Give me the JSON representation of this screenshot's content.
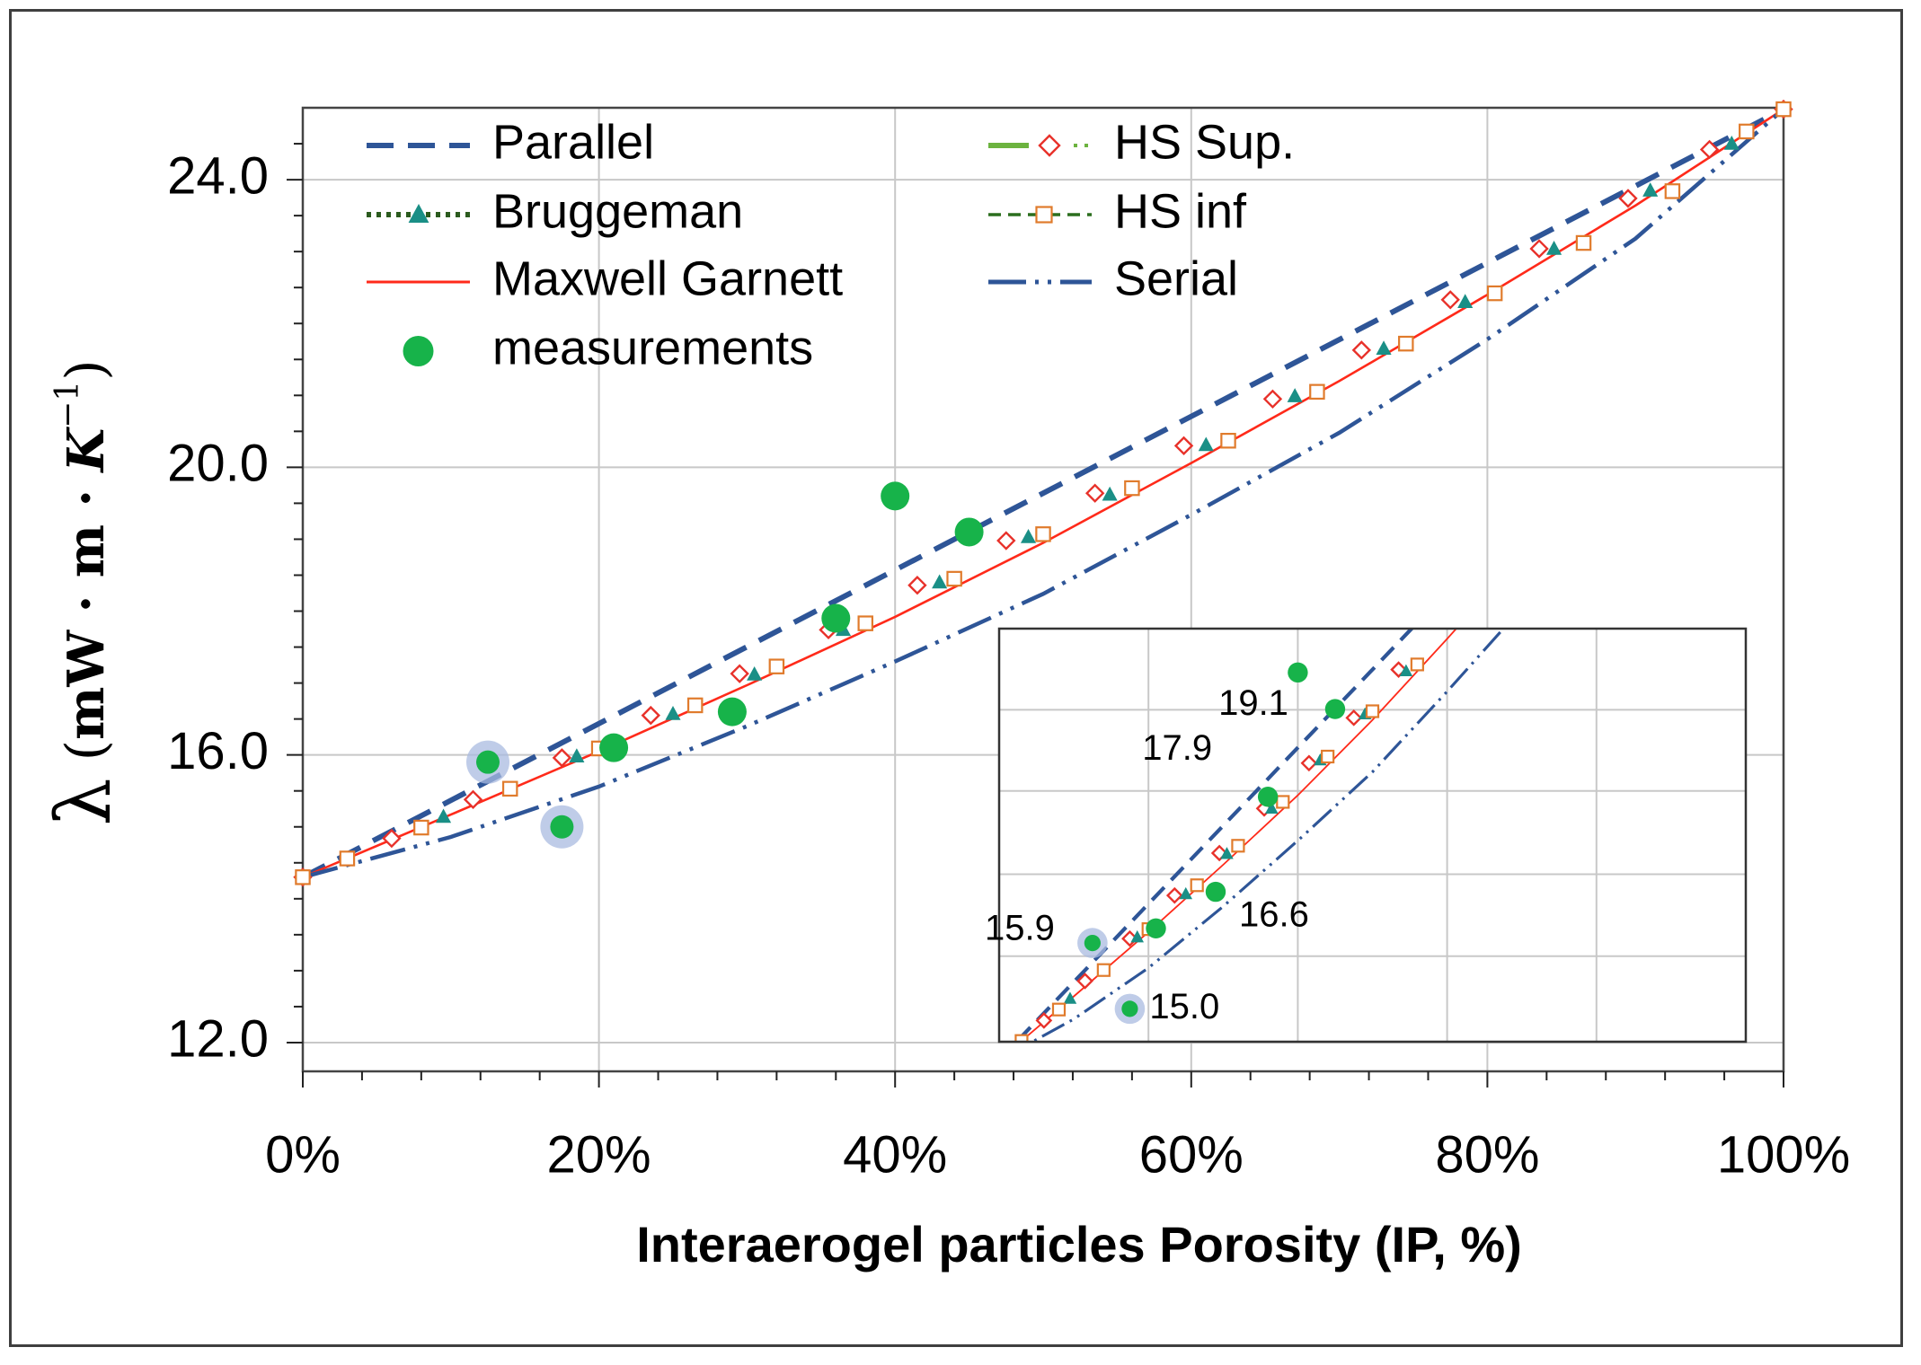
{
  "chart_data": {
    "type": "line",
    "xlabel": "Interaerogel particles Porosity (IP, %)",
    "ylabel_parts": {
      "symbol": "λ",
      "open": "(",
      "unit": "mW · m · ",
      "kelvin": "K",
      "exp": "−1",
      "close": ")"
    },
    "xlim": [
      0,
      1
    ],
    "ylim": [
      11.6,
      25.0
    ],
    "x_ticks": [
      0,
      0.2,
      0.4,
      0.6,
      0.8,
      1.0
    ],
    "x_tick_labels": [
      "0%",
      "20%",
      "40%",
      "60%",
      "80%",
      "100%"
    ],
    "y_ticks": [
      12,
      16,
      20,
      24
    ],
    "y_tick_labels": [
      "12.0",
      "16.0",
      "20.0",
      "24.0"
    ],
    "y_grid": [
      12,
      16,
      20,
      24
    ],
    "legend": [
      "Parallel",
      "HS Sup.",
      "Bruggeman",
      "HS inf",
      "Maxwell Garnett",
      "Serial",
      "measurements"
    ],
    "series": [
      {
        "name": "Parallel",
        "color": "#2e5597",
        "style": "dash",
        "x": [
          0,
          1
        ],
        "y": [
          14.3,
          24.98
        ]
      },
      {
        "name": "HS Sup.",
        "color": "#e8312a",
        "style": "diamond-markers",
        "x": [
          0.0,
          0.06,
          0.115,
          0.175,
          0.235,
          0.295,
          0.355,
          0.415,
          0.475,
          0.535,
          0.595,
          0.655,
          0.715,
          0.775,
          0.835,
          0.895,
          0.95,
          1.0
        ],
        "y": [
          14.3,
          14.84,
          15.38,
          15.96,
          16.55,
          17.13,
          17.74,
          18.36,
          18.98,
          19.64,
          20.3,
          20.95,
          21.63,
          22.33,
          23.04,
          23.74,
          24.42,
          24.98
        ]
      },
      {
        "name": "Bruggeman",
        "color": "#1a8f86",
        "style": "triangle-markers",
        "x": [
          0.0,
          0.095,
          0.185,
          0.25,
          0.305,
          0.365,
          0.43,
          0.49,
          0.545,
          0.61,
          0.67,
          0.73,
          0.785,
          0.845,
          0.91,
          0.965,
          1.0
        ],
        "y": [
          14.3,
          15.14,
          15.98,
          16.57,
          17.12,
          17.74,
          18.4,
          19.03,
          19.62,
          20.31,
          20.99,
          21.65,
          22.3,
          23.04,
          23.85,
          24.5,
          24.98
        ]
      },
      {
        "name": "HS inf",
        "color": "#e07b2c",
        "style": "square-markers",
        "x": [
          0.0,
          0.03,
          0.08,
          0.14,
          0.2,
          0.265,
          0.32,
          0.38,
          0.44,
          0.5,
          0.56,
          0.625,
          0.685,
          0.745,
          0.805,
          0.865,
          0.925,
          0.975,
          1.0
        ],
        "y": [
          14.3,
          14.56,
          14.99,
          15.53,
          16.09,
          16.69,
          17.23,
          17.83,
          18.45,
          19.07,
          19.71,
          20.37,
          21.05,
          21.72,
          22.42,
          23.12,
          23.84,
          24.67,
          24.98
        ]
      },
      {
        "name": "Maxwell Garnett",
        "color": "#ff2a1a",
        "style": "solid",
        "x": [
          0,
          0.1,
          0.2,
          0.3,
          0.4,
          0.5,
          0.6,
          0.7,
          0.8,
          0.9,
          1.0
        ],
        "y": [
          14.3,
          15.17,
          16.05,
          16.97,
          17.92,
          18.95,
          20.06,
          21.2,
          22.4,
          23.64,
          24.98
        ]
      },
      {
        "name": "Serial",
        "color": "#2e5597",
        "style": "dash-dot-dot",
        "x": [
          0,
          0.1,
          0.2,
          0.3,
          0.4,
          0.5,
          0.6,
          0.7,
          0.8,
          0.9,
          1.0
        ],
        "y": [
          14.3,
          14.86,
          15.56,
          16.4,
          17.3,
          18.24,
          19.34,
          20.48,
          21.78,
          23.18,
          24.98
        ]
      },
      {
        "name": "measurements",
        "color": "#17b34a",
        "style": "dots",
        "x": [
          0.125,
          0.175,
          0.21,
          0.29,
          0.36,
          0.4,
          0.45
        ],
        "y": [
          15.9,
          15.0,
          16.1,
          16.6,
          17.9,
          19.6,
          19.1
        ],
        "halo": [
          true,
          true,
          false,
          false,
          false,
          false,
          false
        ]
      }
    ],
    "inset": {
      "xlim": [
        0.4,
        0.5
      ],
      "ylim": [
        14.55,
        20.2
      ],
      "x_grid": [
        0.42,
        0.44,
        0.46,
        0.48
      ],
      "y_grid": [
        15.72,
        16.84,
        17.98,
        19.09
      ],
      "labels": [
        {
          "text": "19.1",
          "x": 0.45,
          "y": 19.1
        },
        {
          "text": "17.9",
          "x": 0.36,
          "y": 17.9
        },
        {
          "text": "16.6",
          "x": 0.29,
          "y": 16.6
        },
        {
          "text": "15.9",
          "x": 0.125,
          "y": 15.9
        },
        {
          "text": "15.0",
          "x": 0.175,
          "y": 15.0
        }
      ]
    }
  }
}
